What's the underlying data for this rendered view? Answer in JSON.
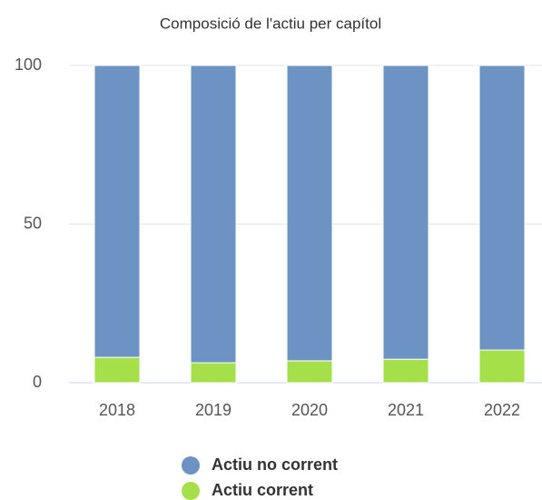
{
  "chart_data": {
    "type": "stacked_bar",
    "title": "Composició de l'actiu per capítol",
    "categories": [
      "2018",
      "2019",
      "2020",
      "2021",
      "2022"
    ],
    "series": [
      {
        "name": "Actiu no corrent",
        "color": "#6c93c4",
        "values": [
          92.0,
          93.7,
          93.1,
          92.6,
          89.7
        ]
      },
      {
        "name": "Actiu corrent",
        "color": "#a5e04a",
        "values": [
          8.0,
          6.3,
          6.9,
          7.4,
          10.3
        ]
      }
    ],
    "ylim": [
      0,
      100
    ],
    "yticks": [
      0,
      50,
      100
    ],
    "grid": true,
    "legend": "bottom"
  }
}
